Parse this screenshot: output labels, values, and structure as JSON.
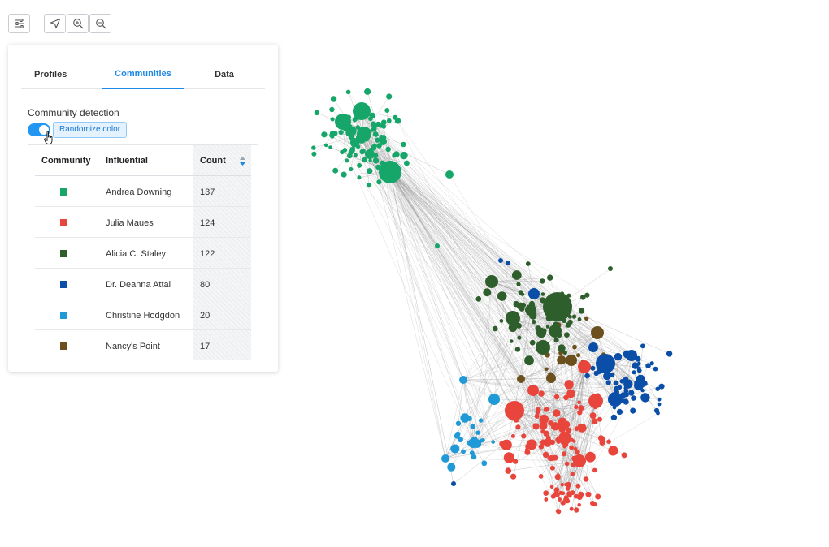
{
  "toolbar": {
    "settings_icon": "sliders-icon",
    "locate_icon": "navigation-arrow-icon",
    "zoom_in_icon": "zoom-in-icon",
    "zoom_out_icon": "zoom-out-icon"
  },
  "panel": {
    "tabs": [
      {
        "label": "Profiles",
        "active": false
      },
      {
        "label": "Communities",
        "active": true
      },
      {
        "label": "Data",
        "active": false
      }
    ],
    "section_label": "Community detection",
    "toggle_on": true,
    "randomize_label": "Randomize color",
    "table": {
      "headers": {
        "community": "Community",
        "influential": "Influential",
        "count": "Count"
      },
      "rows": [
        {
          "color": "#17a66a",
          "influential": "Andrea Downing",
          "count": "137"
        },
        {
          "color": "#e8453c",
          "influential": "Julia Maues",
          "count": "124"
        },
        {
          "color": "#2e5e2b",
          "influential": "Alicia C. Staley",
          "count": "122"
        },
        {
          "color": "#0a4ea8",
          "influential": "Dr. Deanna Attai",
          "count": "80"
        },
        {
          "color": "#1f9ad6",
          "influential": "Christine Hodgdon",
          "count": "20"
        },
        {
          "color": "#6b4f1d",
          "influential": "Nancy's Point",
          "count": "17"
        }
      ]
    }
  },
  "colors": {
    "accent": "#1e88e5",
    "edge": "#9a9a9a"
  }
}
